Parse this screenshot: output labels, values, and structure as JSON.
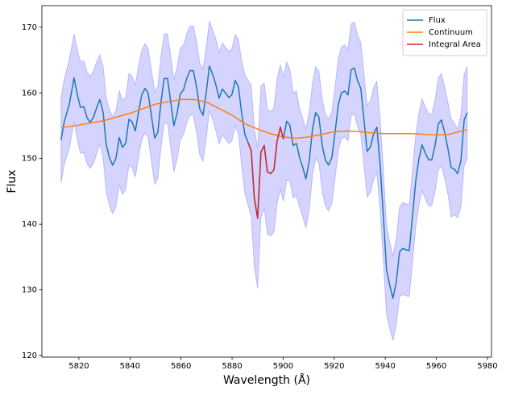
{
  "chart_data": {
    "type": "line",
    "xlabel": "Wavelength  (Å)",
    "ylabel": "Flux",
    "xlim": [
      5805.5,
      5981.6
    ],
    "ylim": [
      119.75,
      173.3
    ],
    "xticks": [
      5820,
      5840,
      5860,
      5880,
      5900,
      5920,
      5940,
      5960,
      5980
    ],
    "yticks": [
      120,
      130,
      140,
      150,
      160,
      170
    ],
    "legend": "upper right",
    "error_color": "#0000ff",
    "x": [
      5813.0,
      5814.3,
      5816.2,
      5818.1,
      5819.4,
      5820.6,
      5821.9,
      5823.2,
      5824.4,
      5825.7,
      5827.0,
      5828.2,
      5829.5,
      5830.7,
      5832.0,
      5833.2,
      5834.5,
      5835.8,
      5837.0,
      5838.3,
      5839.6,
      5840.8,
      5842.1,
      5843.3,
      5844.6,
      5845.9,
      5847.1,
      5848.4,
      5849.7,
      5850.9,
      5852.2,
      5853.4,
      5854.7,
      5856.0,
      5857.2,
      5858.5,
      5859.7,
      5861.0,
      5862.3,
      5863.5,
      5864.8,
      5866.1,
      5867.3,
      5868.6,
      5869.8,
      5871.1,
      5872.4,
      5873.6,
      5874.9,
      5876.2,
      5877.4,
      5878.7,
      5879.9,
      5881.2,
      5882.5,
      5883.7,
      5885.0,
      5886.2,
      5887.5,
      5888.7,
      5890.0,
      5891.3,
      5892.6,
      5893.8,
      5895.1,
      5896.4,
      5897.6,
      5898.9,
      5900.1,
      5901.4,
      5902.6,
      5903.9,
      5905.2,
      5906.4,
      5907.7,
      5908.9,
      5910.2,
      5911.5,
      5912.7,
      5914.0,
      5915.3,
      5916.5,
      5917.8,
      5919.1,
      5920.3,
      5921.6,
      5922.8,
      5924.1,
      5925.4,
      5926.6,
      5927.9,
      5929.1,
      5930.4,
      5931.7,
      5932.9,
      5934.2,
      5935.5,
      5936.7,
      5938.0,
      5939.2,
      5940.5,
      5941.8,
      5943.0,
      5944.3,
      5945.6,
      5946.8,
      5948.1,
      5949.4,
      5950.6,
      5951.9,
      5953.2,
      5954.4,
      5955.7,
      5957.0,
      5958.2,
      5959.5,
      5960.8,
      5962.0,
      5963.3,
      5964.6,
      5965.8,
      5967.1,
      5968.3,
      5969.6,
      5970.9,
      5972.1
    ],
    "series": [
      {
        "name": "Flux",
        "color": "#1f77b4",
        "values": [
          152.8,
          155.7,
          158.2,
          162.3,
          159.7,
          157.8,
          157.9,
          156.2,
          155.5,
          156.3,
          157.8,
          159.0,
          157.0,
          152.1,
          150.1,
          149.0,
          150.0,
          153.2,
          151.7,
          152.3,
          156.0,
          155.6,
          154.2,
          157.0,
          159.7,
          160.7,
          160.0,
          156.5,
          153.1,
          154.0,
          158.8,
          162.2,
          162.2,
          158.5,
          155.0,
          157.0,
          159.8,
          160.5,
          162.3,
          163.4,
          163.4,
          160.9,
          157.6,
          156.6,
          159.8,
          164.1,
          162.8,
          161.3,
          159.2,
          160.6,
          160.0,
          159.3,
          159.7,
          161.9,
          160.9,
          157.0,
          153.7,
          152.5,
          151.2,
          144.0,
          140.9,
          151.0,
          152.0,
          148.0,
          147.7,
          148.3,
          152.6,
          154.8,
          153.0,
          155.7,
          155.1,
          152.0,
          152.3,
          150.2,
          148.6,
          146.9,
          149.6,
          154.5,
          157.0,
          156.3,
          152.0,
          149.8,
          149.0,
          150.2,
          153.9,
          158.2,
          160.0,
          160.3,
          159.7,
          163.5,
          163.8,
          161.9,
          160.7,
          155.7,
          151.1,
          151.8,
          153.9,
          154.8,
          149.0,
          141.6,
          133.0,
          130.6,
          128.7,
          131.2,
          135.8,
          136.3,
          136.1,
          136.0,
          141.0,
          146.5,
          150.0,
          152.1,
          150.8,
          149.8,
          149.8,
          152.0,
          155.3,
          155.9,
          153.9,
          151.4,
          148.6,
          148.4,
          147.7,
          149.6,
          155.9,
          157.0
        ],
        "errors": [
          6.5,
          6.5,
          6.8,
          6.7,
          6.8,
          7.0,
          7.0,
          7.0,
          7.0,
          7.0,
          7.0,
          6.8,
          7.0,
          7.2,
          7.3,
          7.4,
          7.3,
          7.2,
          7.2,
          7.0,
          7.0,
          7.0,
          7.0,
          7.0,
          6.8,
          6.8,
          6.8,
          7.0,
          7.0,
          7.0,
          7.0,
          6.8,
          6.8,
          7.0,
          7.0,
          7.0,
          7.0,
          6.8,
          6.8,
          6.8,
          6.8,
          7.0,
          7.0,
          7.0,
          7.0,
          6.8,
          6.8,
          7.0,
          7.0,
          7.0,
          7.0,
          7.0,
          7.0,
          7.0,
          7.2,
          8.0,
          9.0,
          9.5,
          10.0,
          10.5,
          10.7,
          10.0,
          9.5,
          9.5,
          9.5,
          9.5,
          9.5,
          9.5,
          9.5,
          9.0,
          8.5,
          8.0,
          8.0,
          7.5,
          7.5,
          7.5,
          7.5,
          7.0,
          7.0,
          7.0,
          7.0,
          7.0,
          7.0,
          7.0,
          7.0,
          7.0,
          7.0,
          7.0,
          7.0,
          7.0,
          7.0,
          7.0,
          7.0,
          7.0,
          7.0,
          7.0,
          7.0,
          7.0,
          7.0,
          7.0,
          6.8,
          6.6,
          6.4,
          6.6,
          6.8,
          7.0,
          7.0,
          7.0,
          7.0,
          7.0,
          7.0,
          7.0,
          7.0,
          7.0,
          7.0,
          7.0,
          7.0,
          7.0,
          7.0,
          7.0,
          7.5,
          7.0,
          6.7,
          7.0,
          7.0,
          7.0
        ]
      },
      {
        "name": "Continuum",
        "color": "#ff7f0e",
        "x": [
          5813,
          5820,
          5830,
          5840,
          5850,
          5860,
          5865,
          5870,
          5880,
          5885,
          5890,
          5895,
          5900,
          5905,
          5910,
          5915,
          5920,
          5925,
          5930,
          5935,
          5940,
          5950,
          5960,
          5965,
          5972
        ],
        "values": [
          154.7,
          155.1,
          155.8,
          156.9,
          158.3,
          159.0,
          159.0,
          158.6,
          156.6,
          155.3,
          154.5,
          153.8,
          153.3,
          153.1,
          153.3,
          153.7,
          154.1,
          154.2,
          154.1,
          153.9,
          153.8,
          153.8,
          153.6,
          153.7,
          154.4
        ]
      },
      {
        "name": "Integral Area",
        "color": "#d62728",
        "values": [
          null,
          null,
          null,
          null,
          null,
          null,
          null,
          null,
          null,
          null,
          null,
          null,
          null,
          null,
          null,
          null,
          null,
          null,
          null,
          null,
          null,
          null,
          null,
          null,
          null,
          null,
          null,
          null,
          null,
          null,
          null,
          null,
          null,
          null,
          null,
          null,
          null,
          null,
          null,
          null,
          null,
          null,
          null,
          null,
          null,
          null,
          null,
          null,
          null,
          null,
          null,
          null,
          null,
          null,
          null,
          null,
          null,
          152.5,
          151.2,
          144.0,
          140.9,
          151.0,
          152.0,
          148.0,
          147.7,
          148.3,
          152.6,
          154.8,
          153.0,
          null,
          null,
          null,
          null,
          null,
          null,
          null,
          null,
          null,
          null,
          null,
          null,
          null,
          null,
          null,
          null,
          null,
          null,
          null,
          null,
          null,
          null,
          null,
          null,
          null,
          null,
          null,
          null,
          null,
          null,
          null,
          null,
          null,
          null,
          null,
          null,
          null,
          null,
          null,
          null,
          null,
          null,
          null,
          null,
          null,
          null,
          null,
          null,
          null,
          null,
          null,
          null,
          null,
          null,
          null,
          null,
          null
        ]
      }
    ]
  }
}
